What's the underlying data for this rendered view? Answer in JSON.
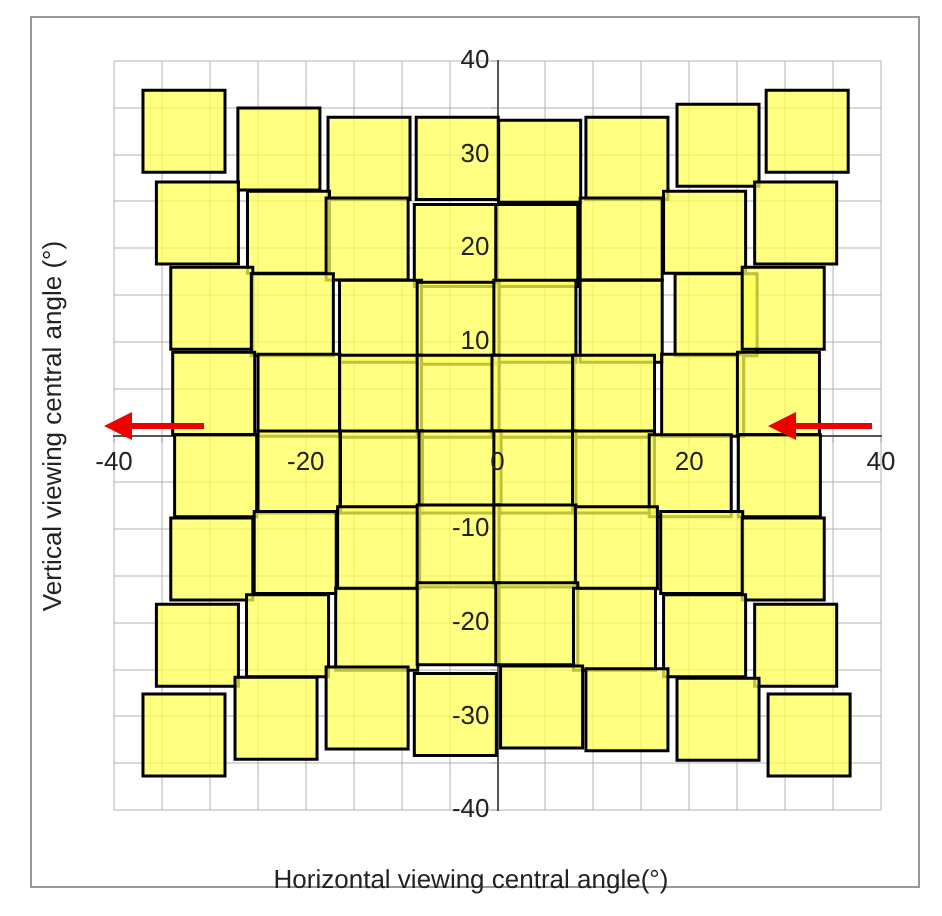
{
  "chart_data": {
    "type": "scatter",
    "xlabel": "Horizontal viewing central angle(°)",
    "ylabel": "Vertical viewing central angle (°)",
    "xlim": [
      -40,
      40
    ],
    "ylim": [
      -40,
      40
    ],
    "xticks": [
      -40,
      {
        "value": -35,
        "label": null
      },
      {
        "value": -30,
        "label": null
      },
      {
        "value": -25,
        "label": null
      },
      -20,
      {
        "value": -15,
        "label": null
      },
      {
        "value": -10,
        "label": null
      },
      {
        "value": -5,
        "label": null
      },
      0,
      {
        "value": 5,
        "label": null
      },
      {
        "value": 10,
        "label": null
      },
      {
        "value": 15,
        "label": null
      },
      20,
      {
        "value": 25,
        "label": null
      },
      {
        "value": 30,
        "label": null
      },
      {
        "value": 35,
        "label": null
      },
      40
    ],
    "yticks": [
      -40,
      {
        "value": -35,
        "label": null
      },
      -30,
      {
        "value": -25,
        "label": null
      },
      -20,
      {
        "value": -15,
        "label": null
      },
      -10,
      {
        "value": -5,
        "label": null
      },
      {
        "value": 0,
        "label": null
      },
      {
        "value": 5,
        "label": null
      },
      10,
      {
        "value": 15,
        "label": null
      },
      20,
      {
        "value": 25,
        "label": null
      },
      30,
      {
        "value": 35,
        "label": null
      },
      40
    ],
    "grid": true,
    "legend": false,
    "marker": "square",
    "series": [
      {
        "color": "#ffff55",
        "x": [
          -32.7,
          -22.8,
          -13.4,
          -4.2,
          4.4,
          13.5,
          23,
          32.3,
          -31.3,
          -21.8,
          -13.6,
          -4.4,
          4.1,
          12.9,
          21.6,
          31.1,
          -29.8,
          -21.4,
          -12.2,
          -4.1,
          3.9,
          12.9,
          22.8,
          29.8,
          -29.6,
          -20.7,
          -12.2,
          -4.1,
          3.7,
          12.1,
          21.4,
          29.3,
          -29.4,
          -20.7,
          -12.1,
          -3.9,
          3.9,
          12.1,
          20.1,
          29.4,
          -29.8,
          -21.1,
          -12.4,
          -4.1,
          3.9,
          12.4,
          21.3,
          29.8,
          -31.3,
          -21.9,
          -12.6,
          -4.1,
          4.1,
          12.2,
          21.6,
          31.1,
          -32.7,
          -23.1,
          -13.6,
          -4.4,
          4.6,
          13.5,
          23,
          32.5
        ],
        "values": [
          32.5,
          30.6,
          29.6,
          29.6,
          29.3,
          29.6,
          31,
          32.5,
          22.7,
          21.7,
          21,
          20.3,
          20.3,
          21,
          21.7,
          22.7,
          13.6,
          12.9,
          12.2,
          12,
          12.2,
          12.2,
          12.9,
          13.6,
          4.5,
          4.3,
          4.2,
          4.2,
          4.2,
          4.2,
          4.3,
          4.5,
          -4.3,
          -3.9,
          -3.9,
          -3.9,
          -3.9,
          -3.9,
          -4.3,
          -4.3,
          -13.2,
          -12.5,
          -12,
          -11.8,
          -11.8,
          -12,
          -12.5,
          -13.2,
          -22.4,
          -21.4,
          -20.7,
          -20.1,
          -20.1,
          -20.7,
          -21.4,
          -22.4,
          -32,
          -30.2,
          -29.1,
          -29.8,
          -29,
          -29.3,
          -30.3,
          -32
        ]
      }
    ]
  }
}
